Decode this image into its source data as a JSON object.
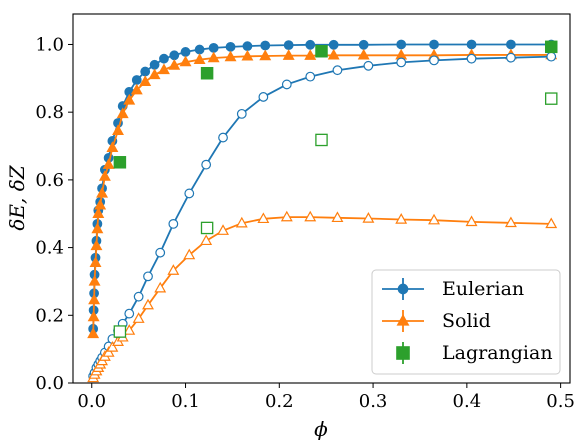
{
  "chart_data": {
    "type": "scatter",
    "title": "",
    "xlabel": "ϕ",
    "ylabel": "δE, δZ",
    "xlim": [
      -0.02,
      0.51
    ],
    "ylim": [
      0.0,
      1.09
    ],
    "xticks": [
      0.0,
      0.1,
      0.2,
      0.3,
      0.4,
      0.5
    ],
    "xtick_labels": [
      "0.0",
      "0.1",
      "0.2",
      "0.3",
      "0.4",
      "0.5"
    ],
    "yticks": [
      0.0,
      0.2,
      0.4,
      0.6,
      0.8,
      1.0
    ],
    "ytick_labels": [
      "0.0",
      "0.2",
      "0.4",
      "0.6",
      "0.8",
      "1.0"
    ],
    "grid": false,
    "legend_position": "bottom-right",
    "colors": {
      "eulerian": "#1f77b4",
      "solid": "#ff7f0e",
      "lagrangian": "#2ca02c"
    },
    "legend": [
      {
        "label": "Eulerian",
        "marker": "circle",
        "color": "#1f77b4",
        "line": true
      },
      {
        "label": "Solid",
        "marker": "triangle",
        "color": "#ff7f0e",
        "line": true
      },
      {
        "label": "Lagrangian",
        "marker": "square",
        "color": "#2ca02c",
        "line": false
      }
    ],
    "series": [
      {
        "name": "Eulerian",
        "variant": "filled",
        "marker": "circle",
        "color": "#1f77b4",
        "line": true,
        "x": [
          0.0015,
          0.002,
          0.0025,
          0.003,
          0.004,
          0.005,
          0.006,
          0.007,
          0.009,
          0.011,
          0.014,
          0.018,
          0.022,
          0.028,
          0.033,
          0.04,
          0.048,
          0.057,
          0.067,
          0.077,
          0.088,
          0.1,
          0.115,
          0.13,
          0.148,
          0.166,
          0.185,
          0.21,
          0.233,
          0.258,
          0.29,
          0.33,
          0.365,
          0.405,
          0.447,
          0.49
        ],
        "y": [
          0.16,
          0.215,
          0.265,
          0.32,
          0.37,
          0.42,
          0.47,
          0.51,
          0.535,
          0.575,
          0.63,
          0.665,
          0.715,
          0.768,
          0.818,
          0.86,
          0.895,
          0.92,
          0.94,
          0.958,
          0.968,
          0.978,
          0.985,
          0.99,
          0.993,
          0.995,
          0.997,
          0.998,
          0.999,
          0.999,
          0.999,
          1.0,
          1.0,
          1.0,
          1.0,
          1.0
        ]
      },
      {
        "name": "Solid",
        "variant": "filled",
        "marker": "triangle",
        "color": "#ff7f0e",
        "line": true,
        "x": [
          0.0015,
          0.002,
          0.0025,
          0.003,
          0.004,
          0.005,
          0.006,
          0.007,
          0.009,
          0.011,
          0.014,
          0.018,
          0.022,
          0.028,
          0.033,
          0.04,
          0.048,
          0.057,
          0.067,
          0.077,
          0.088,
          0.1,
          0.115,
          0.13,
          0.148,
          0.166,
          0.185,
          0.21,
          0.233,
          0.258,
          0.29,
          0.33,
          0.365,
          0.405,
          0.447,
          0.49
        ],
        "y": [
          0.145,
          0.195,
          0.245,
          0.3,
          0.355,
          0.405,
          0.455,
          0.5,
          0.525,
          0.56,
          0.61,
          0.645,
          0.695,
          0.745,
          0.795,
          0.835,
          0.865,
          0.89,
          0.91,
          0.925,
          0.938,
          0.948,
          0.955,
          0.96,
          0.963,
          0.965,
          0.966,
          0.967,
          0.967,
          0.968,
          0.968,
          0.968,
          0.968,
          0.969,
          0.969,
          0.969
        ]
      },
      {
        "name": "Eulerian",
        "variant": "open",
        "marker": "circle",
        "color": "#1f77b4",
        "line": true,
        "x": [
          0.0015,
          0.003,
          0.005,
          0.007,
          0.009,
          0.011,
          0.014,
          0.018,
          0.022,
          0.028,
          0.033,
          0.04,
          0.05,
          0.06,
          0.073,
          0.087,
          0.104,
          0.122,
          0.14,
          0.16,
          0.183,
          0.208,
          0.233,
          0.262,
          0.295,
          0.33,
          0.365,
          0.405,
          0.447,
          0.49
        ],
        "y": [
          0.02,
          0.03,
          0.045,
          0.055,
          0.065,
          0.075,
          0.09,
          0.108,
          0.13,
          0.155,
          0.175,
          0.205,
          0.255,
          0.315,
          0.385,
          0.47,
          0.56,
          0.645,
          0.725,
          0.795,
          0.845,
          0.882,
          0.905,
          0.924,
          0.937,
          0.947,
          0.953,
          0.958,
          0.961,
          0.964
        ]
      },
      {
        "name": "Solid",
        "variant": "open",
        "marker": "triangle",
        "color": "#ff7f0e",
        "line": true,
        "x": [
          0.0015,
          0.003,
          0.005,
          0.007,
          0.009,
          0.011,
          0.014,
          0.018,
          0.022,
          0.028,
          0.033,
          0.04,
          0.05,
          0.06,
          0.073,
          0.087,
          0.104,
          0.122,
          0.14,
          0.16,
          0.183,
          0.208,
          0.233,
          0.262,
          0.295,
          0.33,
          0.365,
          0.405,
          0.447,
          0.49
        ],
        "y": [
          0.015,
          0.025,
          0.035,
          0.045,
          0.055,
          0.065,
          0.078,
          0.09,
          0.105,
          0.122,
          0.135,
          0.155,
          0.19,
          0.23,
          0.28,
          0.332,
          0.378,
          0.42,
          0.45,
          0.472,
          0.485,
          0.49,
          0.49,
          0.488,
          0.486,
          0.483,
          0.481,
          0.476,
          0.473,
          0.47
        ]
      },
      {
        "name": "Lagrangian",
        "variant": "filled",
        "marker": "square",
        "color": "#2ca02c",
        "line": false,
        "x": [
          0.03,
          0.123,
          0.245,
          0.49
        ],
        "y": [
          0.652,
          0.915,
          0.98,
          0.993
        ]
      },
      {
        "name": "Lagrangian",
        "variant": "open",
        "marker": "square",
        "color": "#2ca02c",
        "line": false,
        "x": [
          0.03,
          0.123,
          0.245,
          0.49
        ],
        "y": [
          0.152,
          0.458,
          0.718,
          0.84
        ]
      }
    ]
  }
}
